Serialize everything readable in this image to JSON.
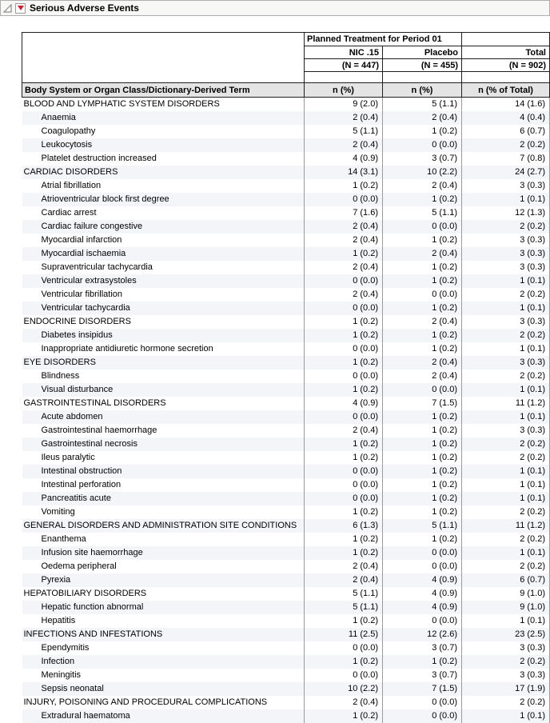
{
  "outline": {
    "title": "Serious Adverse Events",
    "disclosure_icon": "open-disclosure-triangle",
    "menu_icon": "red-triangle-menu",
    "menu_icon_color": "#cf2030"
  },
  "table": {
    "span_header": "Planned Treatment for Period 01",
    "term_header": "Body System or Organ Class/Dictionary-Derived Term",
    "columns": [
      {
        "label": "NIC .15",
        "n_label": "(N = 447)",
        "stat_label": "n (%)"
      },
      {
        "label": "Placebo",
        "n_label": "(N = 455)",
        "stat_label": "n (%)"
      },
      {
        "label": "Total",
        "n_label": "(N = 902)",
        "stat_label": "n (% of Total)"
      }
    ],
    "rows": [
      {
        "level": "group",
        "term": "BLOOD AND LYMPHATIC SYSTEM DISORDERS",
        "nic": "9 (2.0)",
        "placebo": "5 (1.1)",
        "total": "14 (1.6)"
      },
      {
        "level": "term",
        "term": "Anaemia",
        "nic": "2 (0.4)",
        "placebo": "2 (0.4)",
        "total": "4 (0.4)"
      },
      {
        "level": "term",
        "term": "Coagulopathy",
        "nic": "5 (1.1)",
        "placebo": "1 (0.2)",
        "total": "6 (0.7)"
      },
      {
        "level": "term",
        "term": "Leukocytosis",
        "nic": "2 (0.4)",
        "placebo": "0 (0.0)",
        "total": "2 (0.2)"
      },
      {
        "level": "term",
        "term": "Platelet destruction increased",
        "nic": "4 (0.9)",
        "placebo": "3 (0.7)",
        "total": "7 (0.8)"
      },
      {
        "level": "group",
        "term": "CARDIAC DISORDERS",
        "nic": "14 (3.1)",
        "placebo": "10 (2.2)",
        "total": "24 (2.7)"
      },
      {
        "level": "term",
        "term": "Atrial fibrillation",
        "nic": "1 (0.2)",
        "placebo": "2 (0.4)",
        "total": "3 (0.3)"
      },
      {
        "level": "term",
        "term": "Atrioventricular block first degree",
        "nic": "0 (0.0)",
        "placebo": "1 (0.2)",
        "total": "1 (0.1)"
      },
      {
        "level": "term",
        "term": "Cardiac arrest",
        "nic": "7 (1.6)",
        "placebo": "5 (1.1)",
        "total": "12 (1.3)"
      },
      {
        "level": "term",
        "term": "Cardiac failure congestive",
        "nic": "2 (0.4)",
        "placebo": "0 (0.0)",
        "total": "2 (0.2)"
      },
      {
        "level": "term",
        "term": "Myocardial infarction",
        "nic": "2 (0.4)",
        "placebo": "1 (0.2)",
        "total": "3 (0.3)"
      },
      {
        "level": "term",
        "term": "Myocardial ischaemia",
        "nic": "1 (0.2)",
        "placebo": "2 (0.4)",
        "total": "3 (0.3)"
      },
      {
        "level": "term",
        "term": "Supraventricular tachycardia",
        "nic": "2 (0.4)",
        "placebo": "1 (0.2)",
        "total": "3 (0.3)"
      },
      {
        "level": "term",
        "term": "Ventricular extrasystoles",
        "nic": "0 (0.0)",
        "placebo": "1 (0.2)",
        "total": "1 (0.1)"
      },
      {
        "level": "term",
        "term": "Ventricular fibrillation",
        "nic": "2 (0.4)",
        "placebo": "0 (0.0)",
        "total": "2 (0.2)"
      },
      {
        "level": "term",
        "term": "Ventricular tachycardia",
        "nic": "0 (0.0)",
        "placebo": "1 (0.2)",
        "total": "1 (0.1)"
      },
      {
        "level": "group",
        "term": "ENDOCRINE DISORDERS",
        "nic": "1 (0.2)",
        "placebo": "2 (0.4)",
        "total": "3 (0.3)"
      },
      {
        "level": "term",
        "term": "Diabetes insipidus",
        "nic": "1 (0.2)",
        "placebo": "1 (0.2)",
        "total": "2 (0.2)"
      },
      {
        "level": "term",
        "term": "Inappropriate antidiuretic hormone secretion",
        "nic": "0 (0.0)",
        "placebo": "1 (0.2)",
        "total": "1 (0.1)"
      },
      {
        "level": "group",
        "term": "EYE DISORDERS",
        "nic": "1 (0.2)",
        "placebo": "2 (0.4)",
        "total": "3 (0.3)"
      },
      {
        "level": "term",
        "term": "Blindness",
        "nic": "0 (0.0)",
        "placebo": "2 (0.4)",
        "total": "2 (0.2)"
      },
      {
        "level": "term",
        "term": "Visual disturbance",
        "nic": "1 (0.2)",
        "placebo": "0 (0.0)",
        "total": "1 (0.1)"
      },
      {
        "level": "group",
        "term": "GASTROINTESTINAL DISORDERS",
        "nic": "4 (0.9)",
        "placebo": "7 (1.5)",
        "total": "11 (1.2)"
      },
      {
        "level": "term",
        "term": "Acute abdomen",
        "nic": "0 (0.0)",
        "placebo": "1 (0.2)",
        "total": "1 (0.1)"
      },
      {
        "level": "term",
        "term": "Gastrointestinal haemorrhage",
        "nic": "2 (0.4)",
        "placebo": "1 (0.2)",
        "total": "3 (0.3)"
      },
      {
        "level": "term",
        "term": "Gastrointestinal necrosis",
        "nic": "1 (0.2)",
        "placebo": "1 (0.2)",
        "total": "2 (0.2)"
      },
      {
        "level": "term",
        "term": "Ileus paralytic",
        "nic": "1 (0.2)",
        "placebo": "1 (0.2)",
        "total": "2 (0.2)"
      },
      {
        "level": "term",
        "term": "Intestinal obstruction",
        "nic": "0 (0.0)",
        "placebo": "1 (0.2)",
        "total": "1 (0.1)"
      },
      {
        "level": "term",
        "term": "Intestinal perforation",
        "nic": "0 (0.0)",
        "placebo": "1 (0.2)",
        "total": "1 (0.1)"
      },
      {
        "level": "term",
        "term": "Pancreatitis acute",
        "nic": "0 (0.0)",
        "placebo": "1 (0.2)",
        "total": "1 (0.1)"
      },
      {
        "level": "term",
        "term": "Vomiting",
        "nic": "1 (0.2)",
        "placebo": "1 (0.2)",
        "total": "2 (0.2)"
      },
      {
        "level": "group",
        "term": "GENERAL DISORDERS AND ADMINISTRATION SITE CONDITIONS",
        "nic": "6 (1.3)",
        "placebo": "5 (1.1)",
        "total": "11 (1.2)"
      },
      {
        "level": "term",
        "term": "Enanthema",
        "nic": "1 (0.2)",
        "placebo": "1 (0.2)",
        "total": "2 (0.2)"
      },
      {
        "level": "term",
        "term": "Infusion site haemorrhage",
        "nic": "1 (0.2)",
        "placebo": "0 (0.0)",
        "total": "1 (0.1)"
      },
      {
        "level": "term",
        "term": "Oedema peripheral",
        "nic": "2 (0.4)",
        "placebo": "0 (0.0)",
        "total": "2 (0.2)"
      },
      {
        "level": "term",
        "term": "Pyrexia",
        "nic": "2 (0.4)",
        "placebo": "4 (0.9)",
        "total": "6 (0.7)"
      },
      {
        "level": "group",
        "term": "HEPATOBILIARY DISORDERS",
        "nic": "5 (1.1)",
        "placebo": "4 (0.9)",
        "total": "9 (1.0)"
      },
      {
        "level": "term",
        "term": "Hepatic function abnormal",
        "nic": "5 (1.1)",
        "placebo": "4 (0.9)",
        "total": "9 (1.0)"
      },
      {
        "level": "term",
        "term": "Hepatitis",
        "nic": "1 (0.2)",
        "placebo": "0 (0.0)",
        "total": "1 (0.1)"
      },
      {
        "level": "group",
        "term": "INFECTIONS AND INFESTATIONS",
        "nic": "11 (2.5)",
        "placebo": "12 (2.6)",
        "total": "23 (2.5)"
      },
      {
        "level": "term",
        "term": "Ependymitis",
        "nic": "0 (0.0)",
        "placebo": "3 (0.7)",
        "total": "3 (0.3)"
      },
      {
        "level": "term",
        "term": "Infection",
        "nic": "1 (0.2)",
        "placebo": "1 (0.2)",
        "total": "2 (0.2)"
      },
      {
        "level": "term",
        "term": "Meningitis",
        "nic": "0 (0.0)",
        "placebo": "3 (0.7)",
        "total": "3 (0.3)"
      },
      {
        "level": "term",
        "term": "Sepsis neonatal",
        "nic": "10 (2.2)",
        "placebo": "7 (1.5)",
        "total": "17 (1.9)"
      },
      {
        "level": "group",
        "term": "INJURY, POISONING AND PROCEDURAL COMPLICATIONS",
        "nic": "2 (0.4)",
        "placebo": "0 (0.0)",
        "total": "2 (0.2)"
      },
      {
        "level": "term",
        "term": "Extradural haematoma",
        "nic": "1 (0.2)",
        "placebo": "0 (0.0)",
        "total": "1 (0.1)"
      }
    ]
  },
  "colors": {
    "outline_bar_bg": "#f7f7f5",
    "menu_triangle_red": "#cf2030",
    "stat_header_bg": "#e4e4e4",
    "row_stripe": "#f3f5f8",
    "header_border": "#1f1f1f",
    "grid_line": "#9b9b9b"
  }
}
